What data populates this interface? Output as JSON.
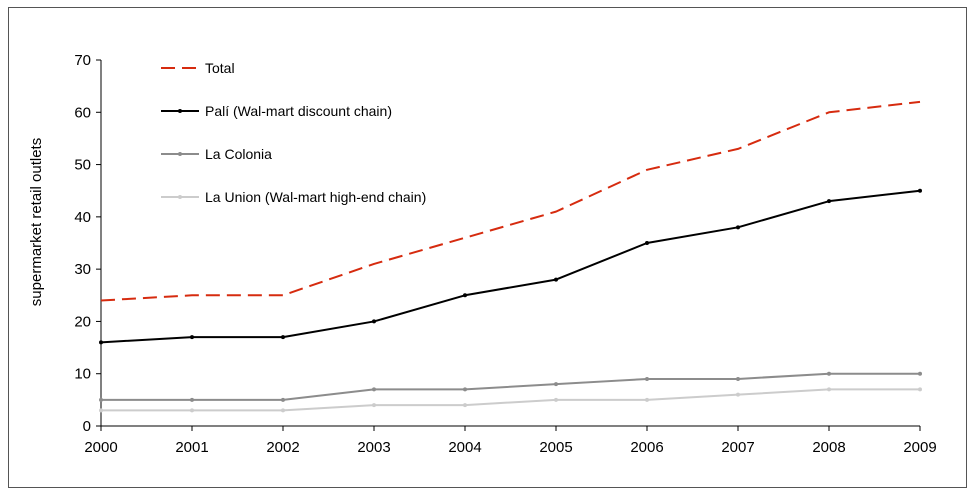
{
  "chart_data": {
    "type": "line",
    "title": "",
    "xlabel": "",
    "ylabel": "supermarket retail outlets",
    "x": [
      2000,
      2001,
      2002,
      2003,
      2004,
      2005,
      2006,
      2007,
      2008,
      2009
    ],
    "xlim": [
      2000,
      2009
    ],
    "ylim": [
      0,
      70
    ],
    "yticks": [
      0,
      10,
      20,
      30,
      40,
      50,
      60,
      70
    ],
    "grid": false,
    "legend_position": "top-left",
    "series": [
      {
        "name": "Total",
        "color": "#d62b0f",
        "style": "dashed",
        "values": [
          24,
          25,
          25,
          31,
          36,
          41,
          49,
          53,
          60,
          62
        ]
      },
      {
        "name": "Palí (Wal-mart discount chain)",
        "color": "#000000",
        "style": "solid",
        "values": [
          16,
          17,
          17,
          20,
          25,
          28,
          35,
          38,
          43,
          45
        ]
      },
      {
        "name": "La Colonia",
        "color": "#8c8c8c",
        "style": "solid",
        "values": [
          5,
          5,
          5,
          7,
          7,
          8,
          9,
          9,
          10,
          10
        ]
      },
      {
        "name": "La Union (Wal-mart high-end chain)",
        "color": "#cccccc",
        "style": "solid",
        "values": [
          3,
          3,
          3,
          4,
          4,
          5,
          5,
          6,
          7,
          7
        ]
      }
    ]
  }
}
